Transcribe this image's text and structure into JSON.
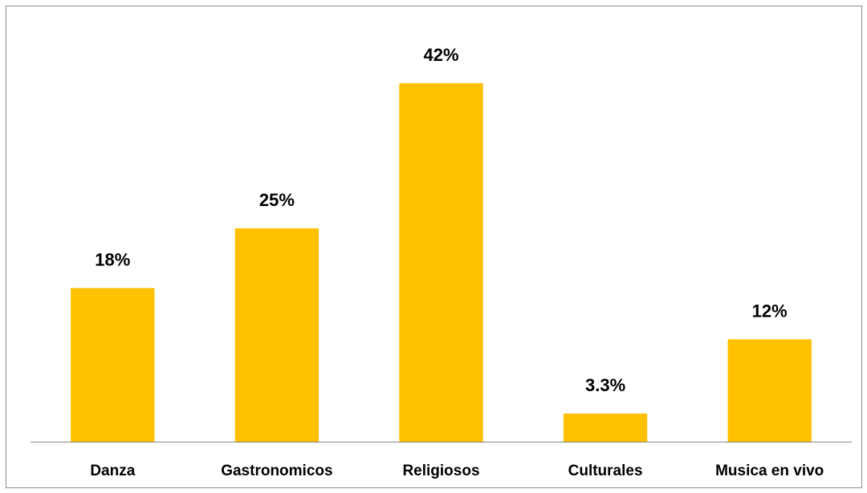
{
  "chart_data": {
    "type": "bar",
    "categories": [
      "Danza",
      "Gastronomicos",
      "Religiosos",
      "Culturales",
      "Musica en vivo"
    ],
    "values": [
      18,
      25,
      42,
      3.3,
      12
    ],
    "data_labels": [
      "18%",
      "25%",
      "42%",
      "3.3%",
      "12%"
    ],
    "ylim": [
      0,
      48
    ],
    "grid": false,
    "bar_color": "#FFC000",
    "label_color": "#000000"
  }
}
